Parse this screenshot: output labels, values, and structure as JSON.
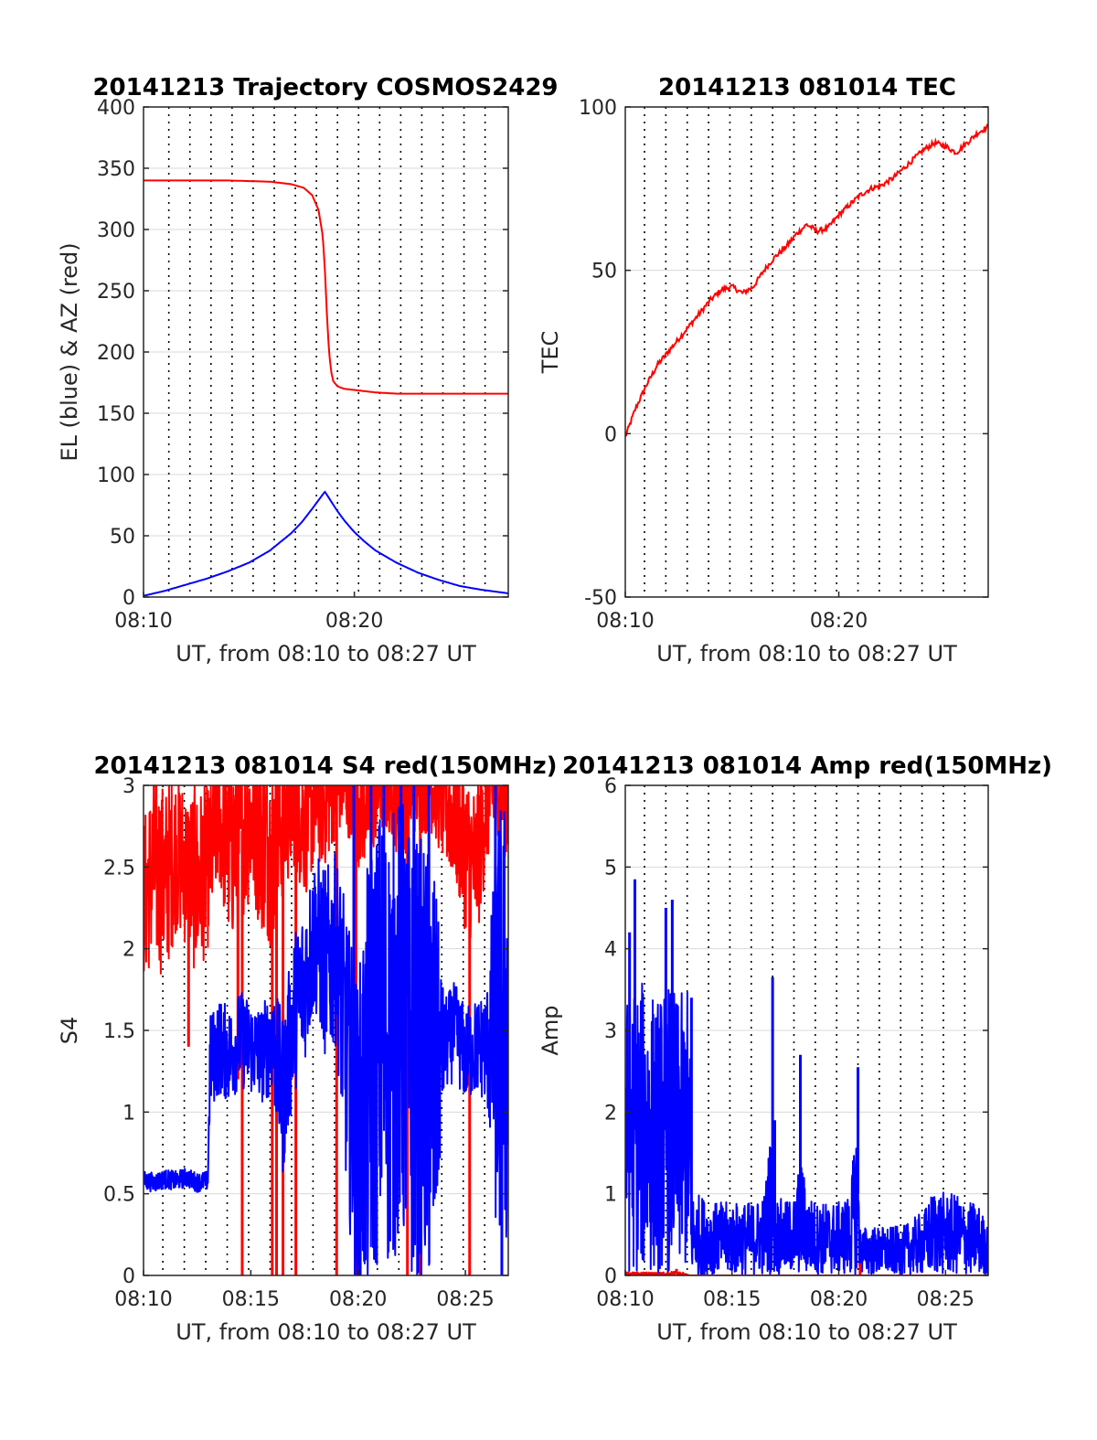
{
  "figure": {
    "colors": {
      "el_series": "#0000ff",
      "az_series": "#ff0000",
      "grid": "#000000",
      "axis": "#262626"
    }
  },
  "chart_data": [
    {
      "id": "trajectory",
      "type": "line",
      "title": "20141213 Trajectory COSMOS2429",
      "xlabel": "UT, from 08:10 to 08:27 UT",
      "ylabel": "EL (blue) & AZ (red)",
      "xlim": [
        0,
        17.3
      ],
      "ylim": [
        0,
        400
      ],
      "x_ticks": [
        {
          "v": 0,
          "label": "08:10"
        },
        {
          "v": 10,
          "label": "08:20"
        }
      ],
      "y_ticks": [
        0,
        50,
        100,
        150,
        200,
        250,
        300,
        350,
        400
      ],
      "x_minor_gridlines": [
        1.2,
        2.2,
        3.2,
        4.2,
        5.2,
        6.2,
        7.2,
        8.2,
        9.2,
        10.2,
        11.2,
        12.2,
        13.2,
        14.2,
        15.2,
        16.2
      ],
      "y_grid": true,
      "series": [
        {
          "name": "AZ (red)",
          "color": "#ff0000",
          "style": "line",
          "x": [
            0,
            2,
            4,
            6,
            7,
            7.6,
            8.0,
            8.3,
            8.5,
            8.6,
            8.7,
            8.8,
            8.9,
            9.0,
            9.2,
            9.5,
            10,
            11,
            12,
            13,
            14,
            15,
            16,
            17.3
          ],
          "y": [
            340,
            340,
            340,
            339,
            337,
            334,
            328,
            316,
            295,
            268,
            230,
            200,
            184,
            176,
            172,
            170,
            169,
            167,
            166,
            166,
            166,
            166,
            166,
            166
          ]
        },
        {
          "name": "EL (blue)",
          "color": "#0000ff",
          "style": "line",
          "x": [
            0,
            1,
            2,
            3,
            4,
            5,
            6,
            7,
            7.5,
            8,
            8.3,
            8.6,
            8.9,
            9.2,
            9.5,
            10,
            10.5,
            11,
            12,
            13,
            14,
            15,
            16,
            17.3
          ],
          "y": [
            1,
            5,
            10,
            15,
            21,
            28,
            38,
            52,
            61,
            72,
            79,
            86,
            78,
            70,
            63,
            53,
            45,
            38,
            28,
            20,
            14,
            9,
            6,
            3
          ]
        }
      ]
    },
    {
      "id": "tec",
      "type": "line",
      "title": "20141213 081014 TEC",
      "xlabel": "UT, from 08:10 to 08:27 UT",
      "ylabel": "TEC",
      "xlim": [
        0,
        17
      ],
      "ylim": [
        -50,
        100
      ],
      "x_ticks": [
        {
          "v": 0,
          "label": "08:10"
        },
        {
          "v": 10,
          "label": "08:20"
        }
      ],
      "y_ticks": [
        -50,
        0,
        50,
        100
      ],
      "x_minor_gridlines": [
        0.9,
        1.9,
        2.9,
        3.9,
        4.9,
        5.9,
        6.9,
        7.9,
        8.9,
        9.9,
        10.9,
        11.9,
        12.9,
        13.9,
        14.9,
        15.9
      ],
      "y_grid": true,
      "series": [
        {
          "name": "TEC",
          "color": "#ff0000",
          "style": "line",
          "x": [
            0,
            0.5,
            1,
            1.5,
            2,
            2.5,
            3,
            3.5,
            4,
            4.5,
            5,
            5.5,
            6,
            6.5,
            7,
            7.5,
            8,
            8.5,
            9,
            9.5,
            10,
            10.5,
            11,
            11.5,
            12,
            12.5,
            13,
            13.5,
            14,
            14.5,
            15,
            15.5,
            16,
            16.5,
            17
          ],
          "y": [
            -1,
            8,
            15,
            21,
            25,
            29,
            33,
            37,
            41,
            44,
            45,
            43,
            45,
            50,
            54,
            57,
            61,
            64,
            62,
            63,
            67,
            70,
            73,
            75,
            76,
            78,
            81,
            84,
            87,
            89,
            88,
            86,
            89,
            92,
            94
          ]
        }
      ]
    },
    {
      "id": "s4",
      "type": "line",
      "title": "20141213 081014 S4 red(150MHz)",
      "xlabel": "UT, from 08:10 to 08:27 UT",
      "ylabel": "S4",
      "xlim": [
        0,
        17
      ],
      "ylim": [
        0,
        3
      ],
      "x_ticks": [
        {
          "v": 0,
          "label": "08:10"
        },
        {
          "v": 5,
          "label": "08:15"
        },
        {
          "v": 10,
          "label": "08:20"
        },
        {
          "v": 15,
          "label": "08:25"
        }
      ],
      "y_ticks": [
        0,
        0.5,
        1,
        1.5,
        2,
        2.5,
        3
      ],
      "y_tick_labels": [
        "0",
        "0.5",
        "1",
        "1.5",
        "2",
        "2.5",
        "3"
      ],
      "x_minor_gridlines": [
        0.9,
        1.9,
        2.9,
        3.9,
        4.9,
        5.9,
        6.9,
        7.9,
        8.9,
        9.9,
        10.9,
        11.9,
        12.9,
        13.9,
        14.9,
        15.9
      ],
      "y_grid": true,
      "series": [
        {
          "name": "red",
          "color": "#ff0000",
          "style": "noise",
          "x": [
            0,
            0.5,
            1,
            1.5,
            2,
            2.5,
            3,
            3.5,
            4,
            4.5,
            5,
            5.5,
            6,
            6.5,
            7,
            7.5,
            8,
            8.5,
            9,
            9.5,
            10,
            10.5,
            11,
            11.5,
            12,
            12.5,
            13,
            13.5,
            14,
            14.5,
            15,
            15.5,
            16,
            16.5,
            17
          ],
          "mid": [
            2.3,
            2.5,
            2.4,
            2.6,
            2.5,
            2.4,
            2.5,
            2.8,
            2.6,
            2.7,
            2.8,
            2.7,
            2.6,
            2.8,
            2.9,
            2.8,
            2.9,
            2.9,
            3.0,
            3.0,
            2.9,
            2.9,
            3.0,
            3.0,
            2.9,
            3.0,
            3.0,
            3.0,
            2.9,
            2.8,
            2.6,
            2.5,
            2.9,
            3.0,
            2.9
          ],
          "spread": [
            0.5,
            0.6,
            0.6,
            0.5,
            0.5,
            0.6,
            0.5,
            0.4,
            0.6,
            0.6,
            0.5,
            0.6,
            0.6,
            0.5,
            0.4,
            0.5,
            0.4,
            0.4,
            0.3,
            0.3,
            0.4,
            0.4,
            0.3,
            0.3,
            0.4,
            0.3,
            0.3,
            0.3,
            0.4,
            0.4,
            0.5,
            0.5,
            0.4,
            0.3,
            0.4
          ],
          "spikes": [
            {
              "x": 4.6,
              "y": 0
            },
            {
              "x": 6.0,
              "y": 0
            },
            {
              "x": 6.2,
              "y": 0
            },
            {
              "x": 6.5,
              "y": 0
            },
            {
              "x": 7.1,
              "y": 0
            },
            {
              "x": 9.0,
              "y": 0
            },
            {
              "x": 9.9,
              "y": 0
            },
            {
              "x": 12.3,
              "y": 0
            },
            {
              "x": 12.9,
              "y": 0
            },
            {
              "x": 15.2,
              "y": 0
            },
            {
              "x": 4.4,
              "y": 1.2
            },
            {
              "x": 2.1,
              "y": 1.4
            }
          ]
        },
        {
          "name": "blue",
          "color": "#0000ff",
          "style": "noise",
          "x": [
            0,
            0.5,
            1,
            1.5,
            2,
            2.5,
            3,
            3.1,
            3.5,
            4,
            4.5,
            5,
            5.5,
            6,
            6.5,
            7,
            7.5,
            8,
            8.5,
            9,
            9.5,
            10,
            10.5,
            11,
            11.5,
            12,
            12.5,
            13,
            13.5,
            14,
            14.5,
            15,
            15.5,
            16,
            16.5,
            17
          ],
          "mid": [
            0.58,
            0.57,
            0.59,
            0.58,
            0.6,
            0.57,
            0.58,
            1.3,
            1.4,
            1.35,
            1.45,
            1.4,
            1.35,
            1.45,
            1.1,
            1.6,
            1.8,
            2.1,
            1.9,
            2.0,
            1.3,
            0.8,
            1.2,
            1.5,
            1.4,
            1.6,
            1.3,
            1.3,
            1.2,
            1.4,
            1.5,
            1.35,
            1.4,
            1.4,
            1.5,
            1.5
          ],
          "spread": [
            0.06,
            0.06,
            0.06,
            0.06,
            0.06,
            0.06,
            0.06,
            0.3,
            0.3,
            0.3,
            0.3,
            0.3,
            0.3,
            0.35,
            0.5,
            0.5,
            0.5,
            0.5,
            0.6,
            0.6,
            0.9,
            1.0,
            1.4,
            1.4,
            1.4,
            1.4,
            1.4,
            1.4,
            1.4,
            0.3,
            0.3,
            0.3,
            0.3,
            0.35,
            1.4,
            1.5
          ],
          "spikes": [
            {
              "x": 9.8,
              "y": 3
            },
            {
              "x": 10.6,
              "y": 3
            },
            {
              "x": 11.2,
              "y": 3
            },
            {
              "x": 12.0,
              "y": 3
            },
            {
              "x": 12.6,
              "y": 3
            },
            {
              "x": 13.3,
              "y": 3
            },
            {
              "x": 10.1,
              "y": 0
            },
            {
              "x": 16.4,
              "y": 3
            },
            {
              "x": 16.7,
              "y": 0
            }
          ]
        }
      ]
    },
    {
      "id": "amp",
      "type": "line",
      "title": "20141213 081014 Amp red(150MHz)",
      "xlabel": "UT, from 08:10 to 08:27 UT",
      "ylabel": "Amp",
      "xlim": [
        0,
        17
      ],
      "ylim": [
        0,
        6
      ],
      "x_ticks": [
        {
          "v": 0,
          "label": "08:10"
        },
        {
          "v": 5,
          "label": "08:15"
        },
        {
          "v": 10,
          "label": "08:20"
        },
        {
          "v": 15,
          "label": "08:25"
        }
      ],
      "y_ticks": [
        0,
        1,
        2,
        3,
        4,
        5,
        6
      ],
      "x_minor_gridlines": [
        0.9,
        1.9,
        2.9,
        3.9,
        4.9,
        5.9,
        6.9,
        7.9,
        8.9,
        9.9,
        10.9,
        11.9,
        12.9,
        13.9,
        14.9,
        15.9
      ],
      "y_grid": true,
      "series": [
        {
          "name": "blue",
          "color": "#0000ff",
          "style": "noise",
          "x": [
            0,
            0.5,
            1,
            1.5,
            2,
            2.5,
            3,
            3.1,
            3.5,
            4,
            4.5,
            5,
            5.5,
            6,
            6.5,
            6.9,
            7,
            7.5,
            8,
            8.2,
            8.5,
            9,
            9.5,
            10,
            10.5,
            10.9,
            11,
            11.5,
            12,
            12.5,
            13,
            13.5,
            14,
            14.5,
            15,
            15.5,
            16,
            16.5,
            17
          ],
          "mid": [
            1.7,
            1.8,
            1.8,
            1.7,
            1.8,
            1.7,
            1.8,
            0.5,
            0.5,
            0.45,
            0.45,
            0.45,
            0.45,
            0.45,
            0.5,
            1.0,
            0.5,
            0.45,
            0.5,
            0.8,
            0.5,
            0.45,
            0.45,
            0.45,
            0.5,
            1.0,
            0.3,
            0.3,
            0.3,
            0.3,
            0.3,
            0.35,
            0.4,
            0.55,
            0.5,
            0.5,
            0.45,
            0.45,
            0.3
          ],
          "spread": [
            1.7,
            1.8,
            1.8,
            1.7,
            1.8,
            1.7,
            1.8,
            0.5,
            0.5,
            0.45,
            0.45,
            0.45,
            0.45,
            0.45,
            0.5,
            1.0,
            0.5,
            0.45,
            0.5,
            0.8,
            0.5,
            0.45,
            0.45,
            0.45,
            0.5,
            1.0,
            0.3,
            0.3,
            0.3,
            0.3,
            0.3,
            0.35,
            0.4,
            0.55,
            0.5,
            0.5,
            0.45,
            0.45,
            0.3
          ],
          "spikes": [
            {
              "x": 0.45,
              "y": 4.85
            },
            {
              "x": 0.2,
              "y": 4.2
            },
            {
              "x": 2.2,
              "y": 4.6
            },
            {
              "x": 1.9,
              "y": 4.5
            },
            {
              "x": 6.9,
              "y": 3.65
            },
            {
              "x": 8.2,
              "y": 2.7
            },
            {
              "x": 10.9,
              "y": 2.55
            },
            {
              "x": 7.0,
              "y": 1.9
            },
            {
              "x": 3.1,
              "y": 3.4
            }
          ]
        },
        {
          "name": "red",
          "color": "#ff0000",
          "style": "noise",
          "x": [
            0,
            1,
            2,
            2.5,
            3,
            17
          ],
          "mid": [
            0.02,
            0.02,
            0.02,
            0.03,
            0,
            0
          ],
          "spread": [
            0.02,
            0.02,
            0.02,
            0.03,
            0,
            0
          ],
          "spikes": [
            {
              "x": 2.4,
              "y": 0.08
            },
            {
              "x": 11.0,
              "y": 0.15
            }
          ]
        }
      ]
    }
  ]
}
